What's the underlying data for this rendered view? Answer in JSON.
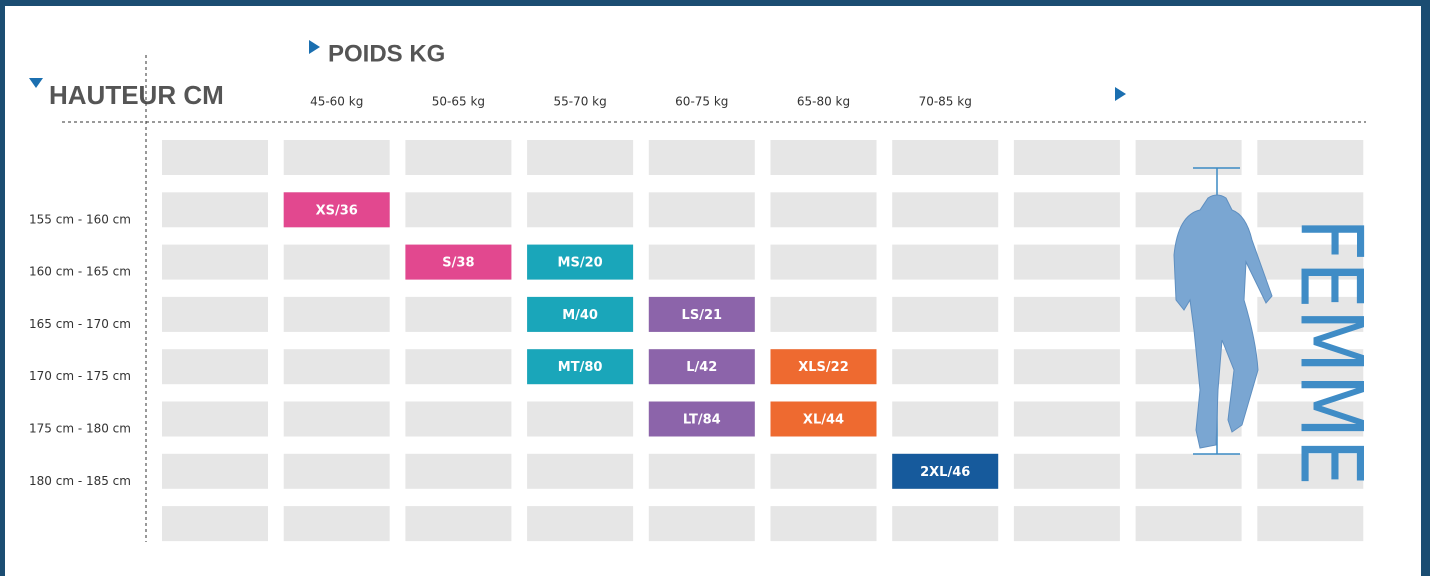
{
  "header": {
    "weight_title": "POIDS KG",
    "height_title": "HAUTEUR CM",
    "gender": "FEMME"
  },
  "weights": [
    "45-60 kg",
    "50-65 kg",
    "55-70 kg",
    "60-75 kg",
    "65-80 kg",
    "70-85 kg"
  ],
  "rows": [
    {
      "height": "155 cm - 160 cm",
      "sizes": [
        {
          "label": "XS/36",
          "color": "#e2488f"
        },
        null,
        null,
        null,
        null,
        null
      ]
    },
    {
      "height": "160 cm - 165 cm",
      "sizes": [
        null,
        {
          "label": "S/38",
          "color": "#e2488f"
        },
        {
          "label": "MS/20",
          "color": "#1aa6ba"
        },
        null,
        null,
        null
      ]
    },
    {
      "height": "165 cm - 170 cm",
      "sizes": [
        null,
        null,
        {
          "label": "M/40",
          "color": "#1aa6ba"
        },
        {
          "label": "LS/21",
          "color": "#8c64aa"
        },
        null,
        null
      ]
    },
    {
      "height": "170 cm - 175 cm",
      "sizes": [
        null,
        null,
        {
          "label": "MT/80",
          "color": "#1aa6ba"
        },
        {
          "label": "L/42",
          "color": "#8c64aa"
        },
        {
          "label": "XLS/22",
          "color": "#ee6a30"
        },
        null
      ]
    },
    {
      "height": "175 cm - 180 cm",
      "sizes": [
        null,
        null,
        null,
        {
          "label": "LT/84",
          "color": "#8c64aa"
        },
        {
          "label": "XL/44",
          "color": "#ee6a30"
        },
        null
      ]
    },
    {
      "height": "180 cm - 185 cm",
      "sizes": [
        null,
        null,
        null,
        null,
        null,
        {
          "label": "2XL/46",
          "color": "#165a9c"
        }
      ]
    }
  ]
}
